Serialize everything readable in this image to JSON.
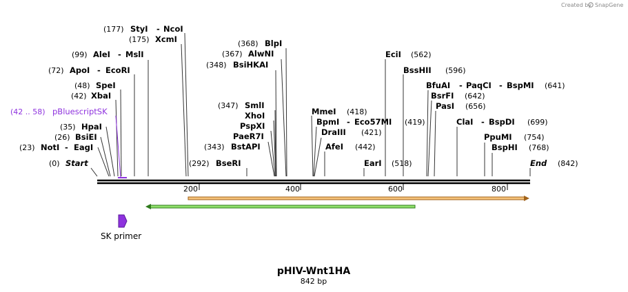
{
  "credit": {
    "prefix": "Created by",
    "brand": "SnapGene"
  },
  "map": {
    "name": "pHIV-Wnt1HA",
    "length_label": "842 bp",
    "length": 842,
    "scale_ticks": [
      "200",
      "400",
      "600",
      "800"
    ]
  },
  "sites": [
    {
      "id": "start",
      "pos": "(0)",
      "name": "Start",
      "name2": ""
    },
    {
      "id": "noti",
      "pos": "(23)",
      "name": "NotI",
      "name2": "EagI"
    },
    {
      "id": "bsiei",
      "pos": "(26)",
      "name": "BsiEI",
      "name2": ""
    },
    {
      "id": "hpai",
      "pos": "(35)",
      "name": "HpaI",
      "name2": ""
    },
    {
      "id": "xbai",
      "pos": "(42)",
      "name": "XbaI",
      "name2": ""
    },
    {
      "id": "spei",
      "pos": "(48)",
      "name": "SpeI",
      "name2": ""
    },
    {
      "id": "apoi",
      "pos": "(72)",
      "name": "ApoI",
      "name2": "EcoRI"
    },
    {
      "id": "alei",
      "pos": "(99)",
      "name": "AleI",
      "name2": "MslI"
    },
    {
      "id": "xcmi",
      "pos": "(175)",
      "name": "XcmI",
      "name2": ""
    },
    {
      "id": "styi",
      "pos": "(177)",
      "name": "StyI",
      "name2": "NcoI"
    },
    {
      "id": "bseri",
      "pos": "(292)",
      "name": "BseRI",
      "name2": ""
    },
    {
      "id": "bstapi",
      "pos": "(343)",
      "name": "BstAPI",
      "name2": ""
    },
    {
      "id": "pae",
      "pos": "",
      "name": "PaeR7I",
      "name2": ""
    },
    {
      "id": "pspxi",
      "pos": "",
      "name": "PspXI",
      "name2": ""
    },
    {
      "id": "xhoi",
      "pos": "",
      "name": "XhoI",
      "name2": ""
    },
    {
      "id": "smli",
      "pos": "(347)",
      "name": "SmlI",
      "name2": ""
    },
    {
      "id": "bsihkai",
      "pos": "(348)",
      "name": "BsiHKAI",
      "name2": ""
    },
    {
      "id": "alwni",
      "pos": "(367)",
      "name": "AlwNI",
      "name2": ""
    },
    {
      "id": "blpi",
      "pos": "(368)",
      "name": "BlpI",
      "name2": ""
    },
    {
      "id": "mmei",
      "pos": "(418)",
      "name": "MmeI",
      "name2": ""
    },
    {
      "id": "bpmi",
      "pos": "(419)",
      "name": "BpmI",
      "name2": "Eco57MI"
    },
    {
      "id": "draiii",
      "pos": "(421)",
      "name": "DraIII",
      "name2": ""
    },
    {
      "id": "afei",
      "pos": "(442)",
      "name": "AfeI",
      "name2": ""
    },
    {
      "id": "eari",
      "pos": "(518)",
      "name": "EarI",
      "name2": ""
    },
    {
      "id": "ecii",
      "pos": "(562)",
      "name": "EciI",
      "name2": ""
    },
    {
      "id": "bsshii",
      "pos": "(596)",
      "name": "BssHII",
      "name2": ""
    },
    {
      "id": "bfuai",
      "pos": "(641)",
      "name": "BfuAI",
      "name2": "PaqCI",
      "name3": "BspMI"
    },
    {
      "id": "bsrfi",
      "pos": "(642)",
      "name": "BsrFI",
      "name2": ""
    },
    {
      "id": "pasi",
      "pos": "(656)",
      "name": "PasI",
      "name2": ""
    },
    {
      "id": "clai",
      "pos": "(699)",
      "name": "ClaI",
      "name2": "BspDI"
    },
    {
      "id": "ppumi",
      "pos": "(754)",
      "name": "PpuMI",
      "name2": ""
    },
    {
      "id": "bsphi",
      "pos": "(768)",
      "name": "BspHI",
      "name2": ""
    },
    {
      "id": "end",
      "pos": "(842)",
      "name": "End",
      "name2": ""
    }
  ],
  "features": {
    "pbluescript": {
      "range": "(42 .. 58)",
      "name": "pBluescriptSK",
      "start": 42,
      "end": 58,
      "color": "#8e32de"
    },
    "orf_orange": {
      "start": 178,
      "end": 842,
      "color": "#f5a623"
    },
    "orf_green": {
      "start": 96,
      "end": 615,
      "color": "#6fce3a"
    },
    "primer": {
      "name": "SK primer",
      "start": 42,
      "end": 58,
      "color": "#8e32de"
    }
  }
}
